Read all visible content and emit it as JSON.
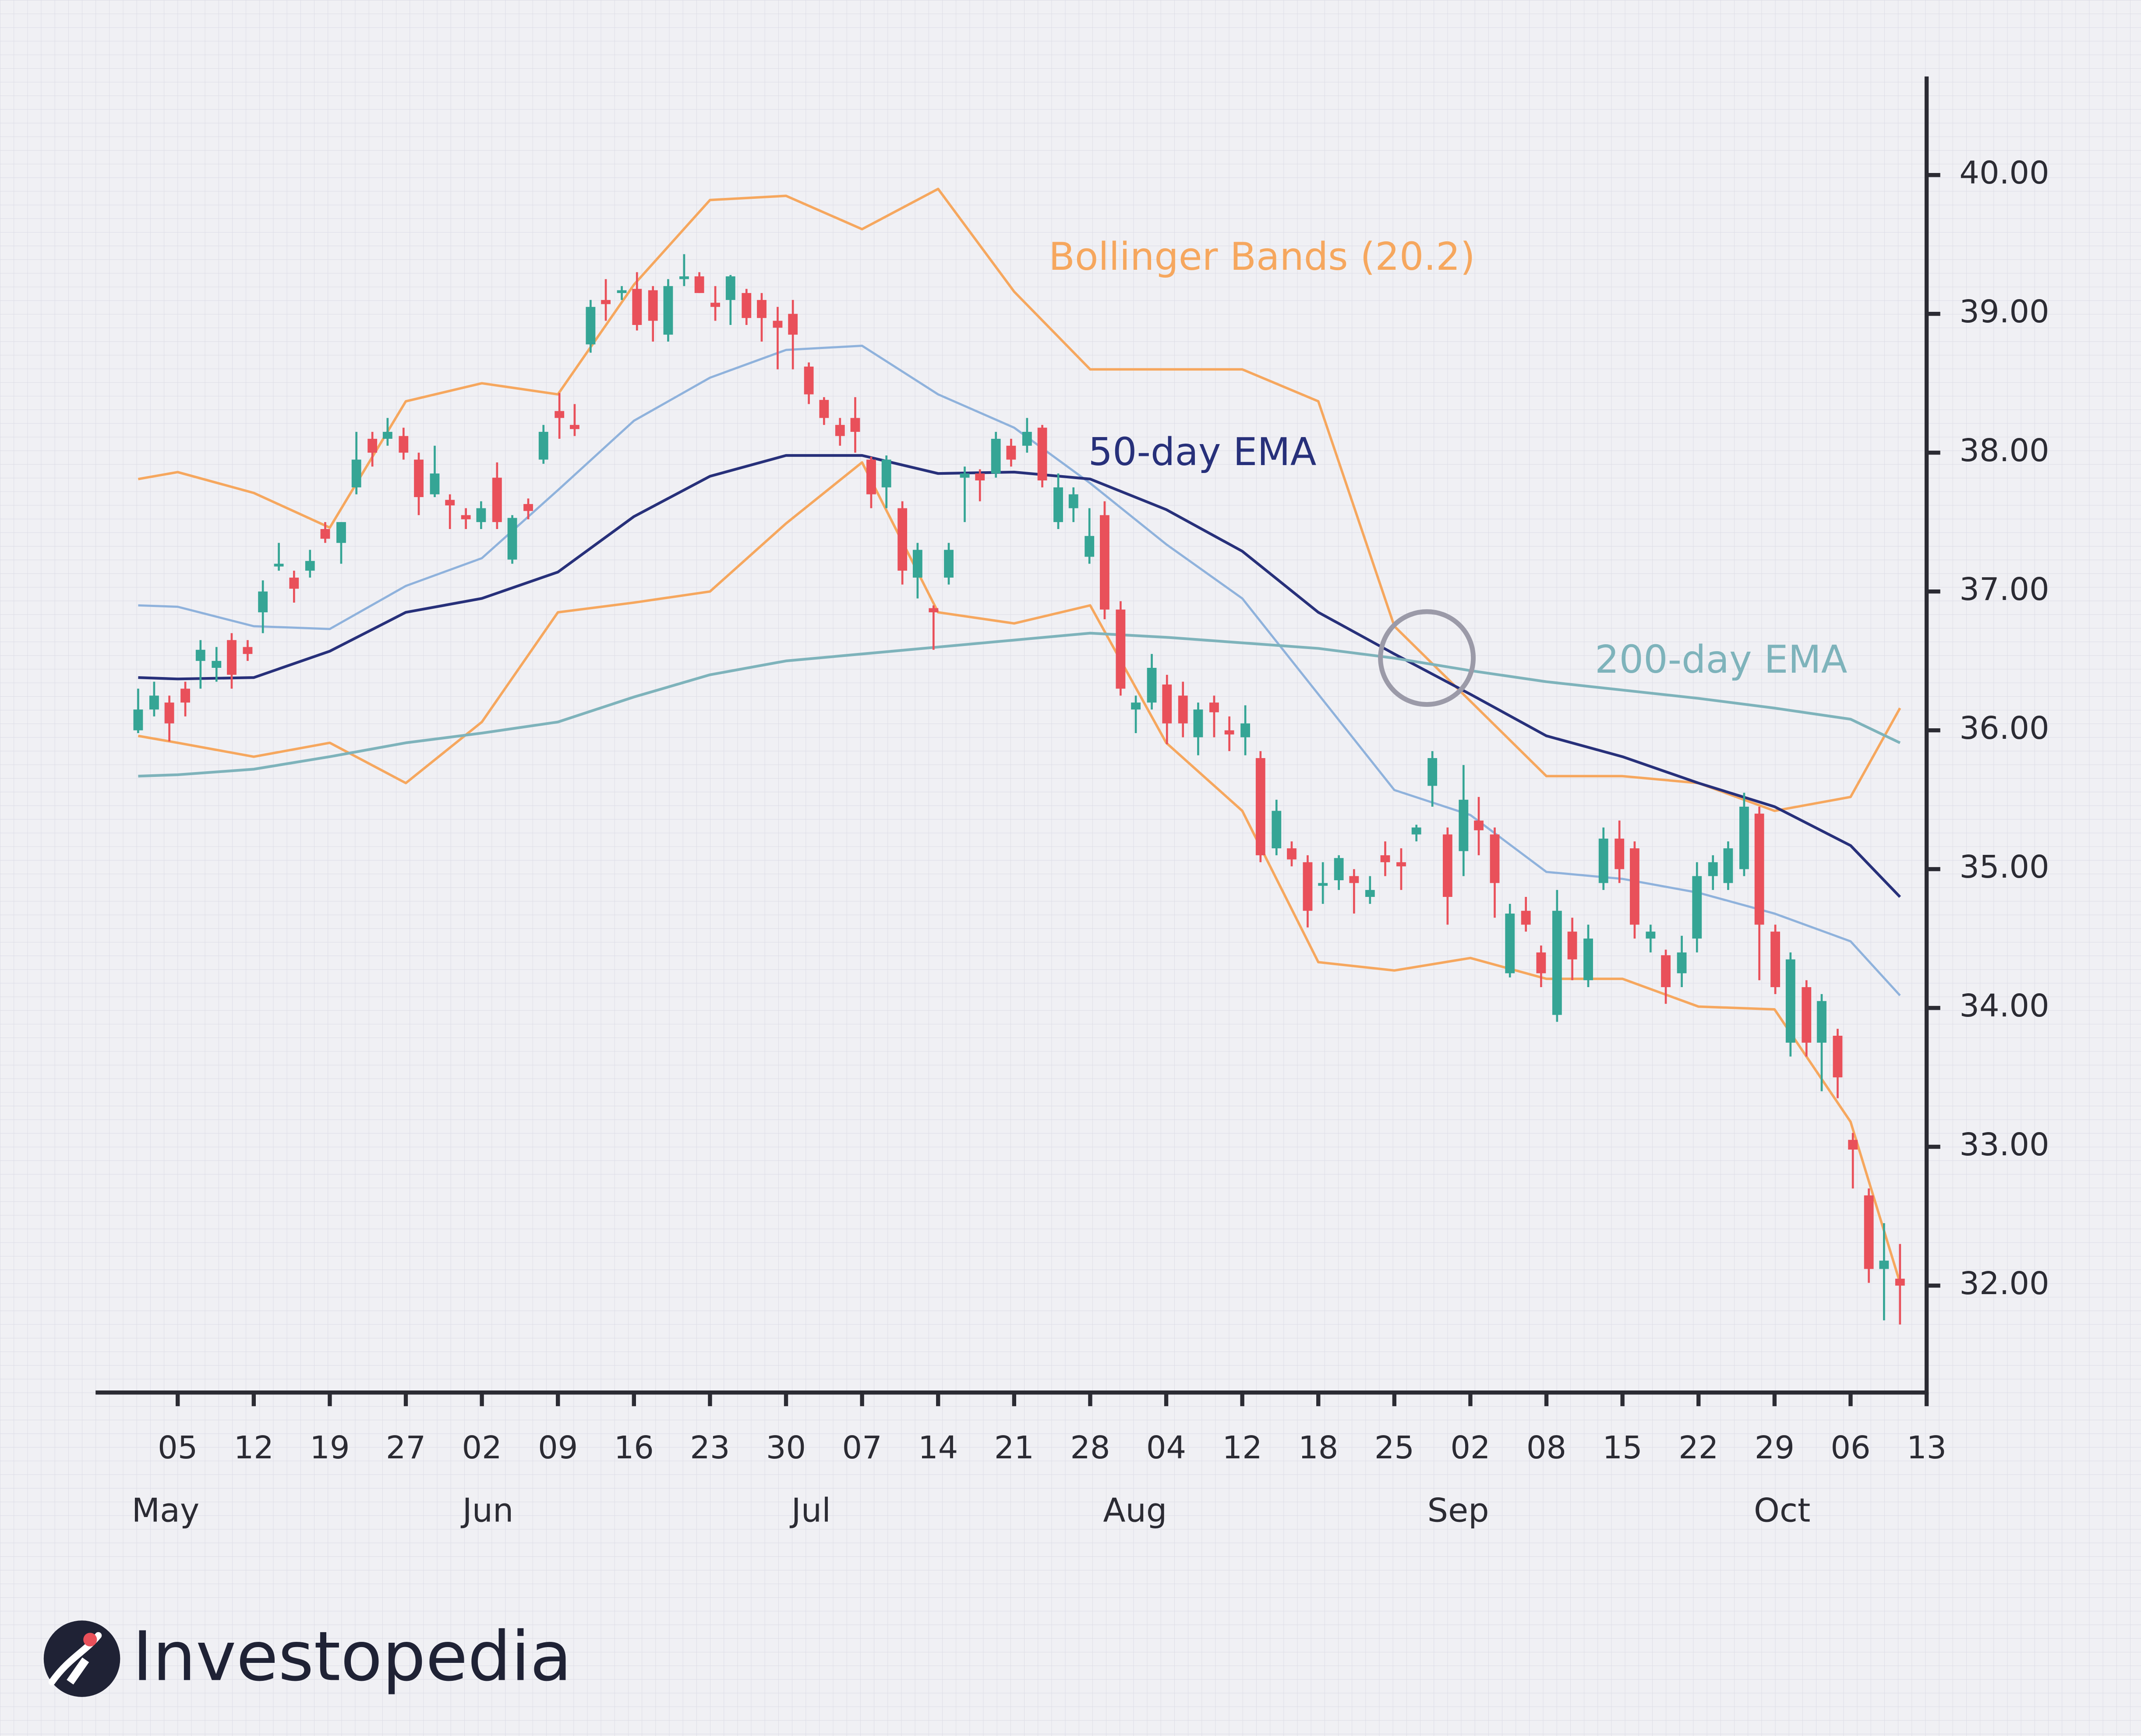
{
  "chart_data": {
    "type": "candlestick",
    "brand": "Investopedia",
    "xlim": [
      -1.08,
      23
    ],
    "ylim": [
      31.23,
      40.71
    ],
    "yticks": [
      {
        "value": 32,
        "label": "32.00"
      },
      {
        "value": 33,
        "label": "33.00"
      },
      {
        "value": 34,
        "label": "34.00"
      },
      {
        "value": 35,
        "label": "35.00"
      },
      {
        "value": 36,
        "label": "36.00"
      },
      {
        "value": 37,
        "label": "37.00"
      },
      {
        "value": 38,
        "label": "38.00"
      },
      {
        "value": 39,
        "label": "39.00"
      },
      {
        "value": 40,
        "label": "40.00"
      }
    ],
    "xticks": [
      {
        "value": 0,
        "label": "05"
      },
      {
        "value": 1,
        "label": "12"
      },
      {
        "value": 2,
        "label": "19"
      },
      {
        "value": 3,
        "label": "27"
      },
      {
        "value": 4,
        "label": "02"
      },
      {
        "value": 5,
        "label": "09"
      },
      {
        "value": 6,
        "label": "16"
      },
      {
        "value": 7,
        "label": "23"
      },
      {
        "value": 8,
        "label": "30"
      },
      {
        "value": 9,
        "label": "07"
      },
      {
        "value": 10,
        "label": "14"
      },
      {
        "value": 11,
        "label": "21"
      },
      {
        "value": 12,
        "label": "28"
      },
      {
        "value": 13,
        "label": "04"
      },
      {
        "value": 14,
        "label": "12"
      },
      {
        "value": 15,
        "label": "18"
      },
      {
        "value": 16,
        "label": "25"
      },
      {
        "value": 17,
        "label": "02"
      },
      {
        "value": 18,
        "label": "08"
      },
      {
        "value": 19,
        "label": "15"
      },
      {
        "value": 20,
        "label": "22"
      },
      {
        "value": 21,
        "label": "29"
      },
      {
        "value": 22,
        "label": "06"
      },
      {
        "value": 23,
        "label": "13"
      }
    ],
    "months": [
      {
        "value": -0.16,
        "label": "May"
      },
      {
        "value": 4.08,
        "label": "Jun"
      },
      {
        "value": 8.33,
        "label": "Jul"
      },
      {
        "value": 12.59,
        "label": "Aug"
      },
      {
        "value": 16.84,
        "label": "Sep"
      },
      {
        "value": 21.1,
        "label": "Oct"
      }
    ],
    "up_color": "#35a595",
    "down_color": "#e9505a",
    "ohlc": {
      "x": [
        -0.52,
        -0.31,
        -0.11,
        0.1,
        0.3,
        0.51,
        0.71,
        0.92,
        1.12,
        1.33,
        1.53,
        1.74,
        1.94,
        2.15,
        2.35,
        2.56,
        2.76,
        2.97,
        3.17,
        3.38,
        3.58,
        3.79,
        3.99,
        4.2,
        4.4,
        4.61,
        4.81,
        5.02,
        5.22,
        5.43,
        5.63,
        5.84,
        6.04,
        6.25,
        6.45,
        6.66,
        6.86,
        7.07,
        7.27,
        7.48,
        7.68,
        7.89,
        8.09,
        8.3,
        8.5,
        8.71,
        8.91,
        9.12,
        9.32,
        9.53,
        9.73,
        9.94,
        10.14,
        10.35,
        10.55,
        10.76,
        10.96,
        11.17,
        11.37,
        11.58,
        11.78,
        11.99,
        12.19,
        12.4,
        12.6,
        12.81,
        13.01,
        13.22,
        13.42,
        13.63,
        13.83,
        14.04,
        14.24,
        14.45,
        14.65,
        14.86,
        15.06,
        15.27,
        15.47,
        15.68,
        15.88,
        16.09,
        16.29,
        16.5,
        16.7,
        16.91,
        17.11,
        17.32,
        17.52,
        17.73,
        17.93,
        18.14,
        18.34,
        18.55,
        18.75,
        18.96,
        19.16,
        19.37,
        19.57,
        19.78,
        19.98,
        20.19,
        20.39,
        20.6,
        20.8,
        21.01,
        21.21,
        21.42,
        21.62,
        21.83,
        22.03,
        22.24,
        22.44,
        22.65
      ],
      "open": [
        36.0,
        36.15,
        36.2,
        36.3,
        36.5,
        36.45,
        36.65,
        36.6,
        36.85,
        37.18,
        37.1,
        37.15,
        37.45,
        37.35,
        37.75,
        38.1,
        38.1,
        38.12,
        37.95,
        37.7,
        37.66,
        37.55,
        37.5,
        37.82,
        37.23,
        37.63,
        37.95,
        38.3,
        38.2,
        38.78,
        39.1,
        39.15,
        39.18,
        39.17,
        38.85,
        39.25,
        39.27,
        39.08,
        39.1,
        39.15,
        39.1,
        38.95,
        39.0,
        38.62,
        38.38,
        38.2,
        38.25,
        37.95,
        37.75,
        37.6,
        37.1,
        36.88,
        37.1,
        37.82,
        37.85,
        37.85,
        38.05,
        38.05,
        38.18,
        37.5,
        37.6,
        37.25,
        37.55,
        36.87,
        36.15,
        36.2,
        36.33,
        36.25,
        35.95,
        36.2,
        36.0,
        35.95,
        35.8,
        35.15,
        35.15,
        35.05,
        34.88,
        34.92,
        34.95,
        34.8,
        35.1,
        35.05,
        35.25,
        35.6,
        35.25,
        35.13,
        35.35,
        35.25,
        34.25,
        34.7,
        34.4,
        33.95,
        34.55,
        34.2,
        34.9,
        35.22,
        35.15,
        34.5,
        34.38,
        34.25,
        34.5,
        34.95,
        34.9,
        35.0,
        35.4,
        34.55,
        33.75,
        34.15,
        33.75,
        33.8,
        33.05,
        32.65,
        32.12,
        32.05
      ],
      "high": [
        36.3,
        36.35,
        36.25,
        36.35,
        36.65,
        36.6,
        36.7,
        36.65,
        37.08,
        37.35,
        37.15,
        37.3,
        37.5,
        37.5,
        38.15,
        38.15,
        38.25,
        38.18,
        38.0,
        38.05,
        37.7,
        37.6,
        37.65,
        37.93,
        37.55,
        37.67,
        38.2,
        38.43,
        38.35,
        39.1,
        39.25,
        39.2,
        39.3,
        39.2,
        39.25,
        39.43,
        39.3,
        39.2,
        39.28,
        39.18,
        39.15,
        39.05,
        39.1,
        38.65,
        38.4,
        38.25,
        38.4,
        37.97,
        37.98,
        37.65,
        37.35,
        36.9,
        37.35,
        37.9,
        37.88,
        38.15,
        38.1,
        38.25,
        38.2,
        37.85,
        37.75,
        37.6,
        37.65,
        36.93,
        36.25,
        36.55,
        36.4,
        36.35,
        36.2,
        36.25,
        36.1,
        36.18,
        35.85,
        35.5,
        35.2,
        35.1,
        35.05,
        35.1,
        35.0,
        34.95,
        35.2,
        35.15,
        35.32,
        35.85,
        35.3,
        35.75,
        35.52,
        35.3,
        34.75,
        34.8,
        34.45,
        34.85,
        34.65,
        34.6,
        35.3,
        35.35,
        35.2,
        34.6,
        34.42,
        34.52,
        35.05,
        35.1,
        35.2,
        35.55,
        35.45,
        34.6,
        34.4,
        34.2,
        34.1,
        33.85,
        33.1,
        32.7,
        32.45,
        32.3
      ],
      "low": [
        35.98,
        36.1,
        35.92,
        36.1,
        36.3,
        36.35,
        36.3,
        36.5,
        36.7,
        37.15,
        36.92,
        37.1,
        37.35,
        37.2,
        37.7,
        37.9,
        38.05,
        37.95,
        37.55,
        37.68,
        37.45,
        37.45,
        37.45,
        37.45,
        37.2,
        37.52,
        37.92,
        38.1,
        38.12,
        38.72,
        38.95,
        39.1,
        38.88,
        38.8,
        38.8,
        39.2,
        39.15,
        38.95,
        38.92,
        38.92,
        38.8,
        38.6,
        38.6,
        38.35,
        38.2,
        38.05,
        38.0,
        37.6,
        37.6,
        37.05,
        36.95,
        36.58,
        37.05,
        37.5,
        37.65,
        37.82,
        37.9,
        38.0,
        37.75,
        37.45,
        37.5,
        37.2,
        36.8,
        36.25,
        35.98,
        36.15,
        35.9,
        35.95,
        35.82,
        35.95,
        35.85,
        35.82,
        35.05,
        35.1,
        35.02,
        34.58,
        34.75,
        34.85,
        34.68,
        34.75,
        34.95,
        34.85,
        35.2,
        35.45,
        34.6,
        34.95,
        35.1,
        34.65,
        34.22,
        34.55,
        34.15,
        33.9,
        34.2,
        34.15,
        34.85,
        34.9,
        34.5,
        34.4,
        34.03,
        34.15,
        34.4,
        34.85,
        34.85,
        34.95,
        34.2,
        34.1,
        33.65,
        33.65,
        33.4,
        33.35,
        32.7,
        32.02,
        31.75,
        31.72
      ],
      "close": [
        36.15,
        36.25,
        36.05,
        36.2,
        36.58,
        36.5,
        36.4,
        36.55,
        37.0,
        37.2,
        37.02,
        37.22,
        37.38,
        37.5,
        37.95,
        38.0,
        38.15,
        38.0,
        37.68,
        37.85,
        37.62,
        37.52,
        37.6,
        37.5,
        37.53,
        37.58,
        38.15,
        38.25,
        38.17,
        39.05,
        39.07,
        39.17,
        38.92,
        38.95,
        39.2,
        39.27,
        39.15,
        39.05,
        39.27,
        38.97,
        38.97,
        38.9,
        38.85,
        38.42,
        38.25,
        38.12,
        38.15,
        37.7,
        37.95,
        37.15,
        37.3,
        36.85,
        37.3,
        37.85,
        37.8,
        38.1,
        37.95,
        38.15,
        37.8,
        37.75,
        37.7,
        37.4,
        36.87,
        36.3,
        36.2,
        36.45,
        36.05,
        36.05,
        36.15,
        36.13,
        35.97,
        36.05,
        35.1,
        35.42,
        35.07,
        34.7,
        34.9,
        35.08,
        34.9,
        34.85,
        35.05,
        35.02,
        35.3,
        35.8,
        34.8,
        35.5,
        35.28,
        34.9,
        34.68,
        34.6,
        34.25,
        34.7,
        34.35,
        34.5,
        35.22,
        35.0,
        34.6,
        34.55,
        34.15,
        34.4,
        34.95,
        35.05,
        35.15,
        35.45,
        34.6,
        34.15,
        34.35,
        33.75,
        34.05,
        33.5,
        32.98,
        32.12,
        32.18,
        32.0
      ]
    },
    "series": [
      {
        "label": "Bollinger Bands (20.2)",
        "color": "#f6a75e",
        "width": 1.8,
        "x": [
          -0.52,
          0,
          1,
          2,
          3,
          4,
          5,
          6,
          7,
          8,
          9,
          10,
          11,
          12,
          13,
          14,
          15,
          16,
          17,
          18,
          19,
          20,
          21,
          22,
          22.65
        ],
        "values": [
          37.81,
          37.86,
          37.71,
          37.46,
          38.37,
          38.5,
          38.42,
          39.21,
          39.82,
          39.85,
          39.61,
          39.9,
          39.16,
          38.6,
          38.6,
          38.6,
          38.37,
          36.75,
          36.21,
          35.67,
          35.67,
          35.62,
          35.42,
          35.52,
          36.16
        ]
      },
      {
        "color": "#f6a75e",
        "width": 1.8,
        "x": [
          -0.52,
          0,
          1,
          2,
          3,
          4,
          5,
          6,
          7,
          8,
          9,
          10,
          11,
          12,
          13,
          14,
          15,
          16,
          17,
          18,
          19,
          20,
          21,
          22,
          22.65
        ],
        "values": [
          35.96,
          35.91,
          35.81,
          35.91,
          35.62,
          36.06,
          36.85,
          36.92,
          37.0,
          37.49,
          37.93,
          36.85,
          36.77,
          36.9,
          35.91,
          35.42,
          34.33,
          34.27,
          34.36,
          34.21,
          34.21,
          34.01,
          33.99,
          33.18,
          32.02
        ]
      },
      {
        "color": "#8fb2dc",
        "width": 1.6,
        "x": [
          -0.52,
          0,
          1,
          2,
          3,
          4,
          5,
          6,
          7,
          8,
          9,
          10,
          11,
          12,
          13,
          14,
          15,
          16,
          17,
          18,
          19,
          20,
          21,
          22,
          22.65
        ],
        "values": [
          36.9,
          36.89,
          36.75,
          36.73,
          37.04,
          37.24,
          37.73,
          38.23,
          38.54,
          38.74,
          38.77,
          38.42,
          38.18,
          37.78,
          37.34,
          36.95,
          36.26,
          35.57,
          35.39,
          34.98,
          34.93,
          34.83,
          34.68,
          34.48,
          34.09
        ]
      },
      {
        "label": "50-day EMA",
        "color": "#27307a",
        "width": 2,
        "x": [
          -0.52,
          0,
          1,
          2,
          3,
          4,
          5,
          6,
          7,
          8,
          9,
          10,
          11,
          12,
          13,
          14,
          15,
          16,
          17,
          18,
          19,
          20,
          21,
          22,
          22.65
        ],
        "values": [
          36.38,
          36.37,
          36.38,
          36.57,
          36.85,
          36.95,
          37.14,
          37.54,
          37.83,
          37.98,
          37.98,
          37.85,
          37.86,
          37.81,
          37.59,
          37.29,
          36.85,
          36.55,
          36.26,
          35.96,
          35.81,
          35.62,
          35.45,
          35.17,
          34.8
        ]
      },
      {
        "label": "200-day EMA",
        "color": "#7eb3bb",
        "width": 2,
        "x": [
          -0.52,
          0,
          1,
          2,
          3,
          4,
          5,
          6,
          7,
          8,
          9,
          10,
          11,
          12,
          13,
          14,
          15,
          16,
          17,
          18,
          19,
          20,
          21,
          22,
          22.65
        ],
        "values": [
          35.67,
          35.68,
          35.72,
          35.81,
          35.91,
          35.98,
          36.06,
          36.24,
          36.4,
          36.5,
          36.55,
          36.6,
          36.65,
          36.7,
          36.67,
          36.63,
          36.59,
          36.52,
          36.43,
          36.35,
          36.29,
          36.23,
          36.16,
          36.08,
          35.91
        ]
      }
    ]
  }
}
